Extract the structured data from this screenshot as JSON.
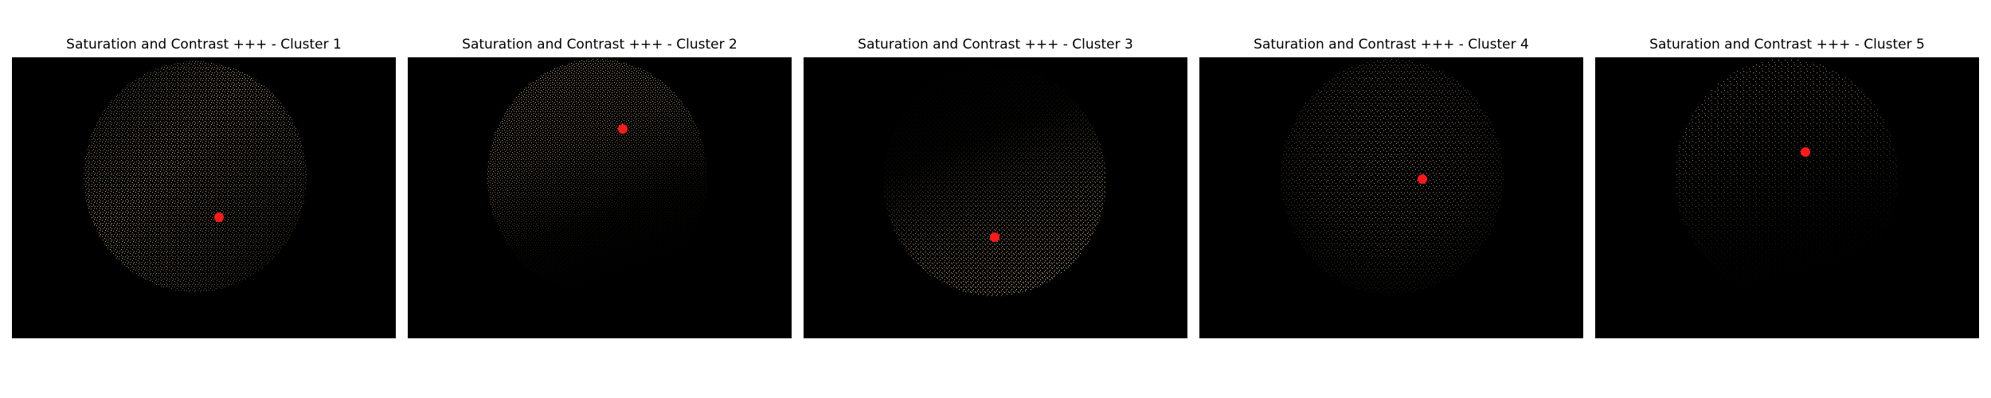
{
  "colors": {
    "background": "#ffffff",
    "image_background": "#000000",
    "speckle": "#cdbb8c",
    "centroid": "#ff1a1a"
  },
  "panels": [
    {
      "title": "Saturation and Contrast +++ - Cluster 1",
      "centroid_icon": "red-dot-marker-icon"
    },
    {
      "title": "Saturation and Contrast +++ - Cluster 2",
      "centroid_icon": "red-dot-marker-icon"
    },
    {
      "title": "Saturation and Contrast +++ - Cluster 3",
      "centroid_icon": "red-dot-marker-icon"
    },
    {
      "title": "Saturation and Contrast +++ - Cluster 4",
      "centroid_icon": "red-dot-marker-icon"
    },
    {
      "title": "Saturation and Contrast +++ - Cluster 5",
      "centroid_icon": "red-dot-marker-icon"
    }
  ]
}
